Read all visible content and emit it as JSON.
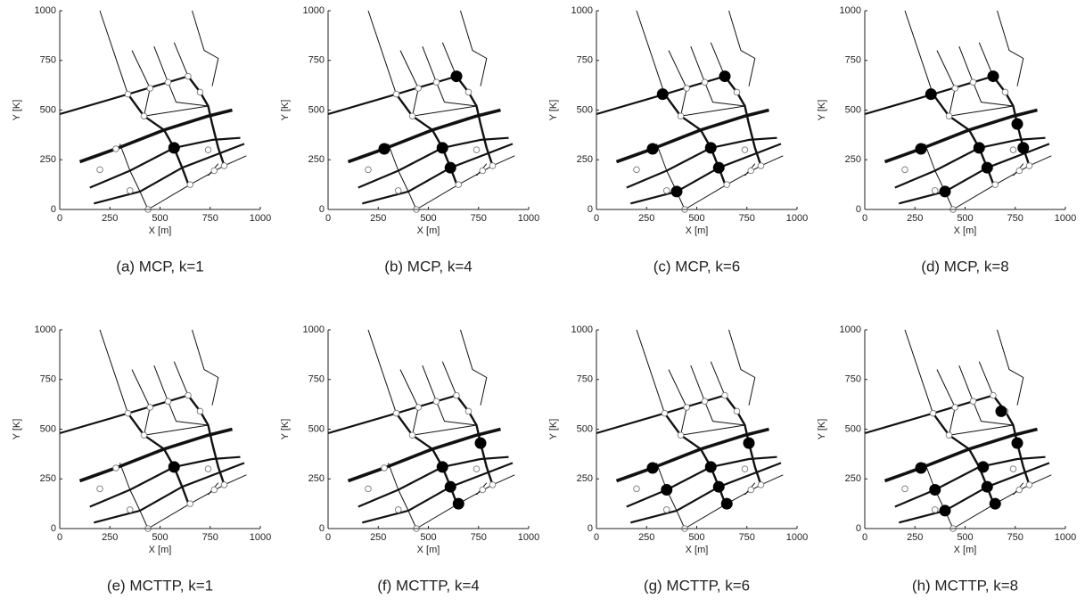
{
  "network": {
    "roads": [
      {
        "x": [
          0,
          340,
          640
        ],
        "y": [
          480,
          580,
          670
        ]
      },
      {
        "x": [
          200,
          340
        ],
        "y": [
          1000,
          580
        ]
      },
      {
        "x": [
          360,
          450
        ],
        "y": [
          800,
          610
        ]
      },
      {
        "x": [
          470,
          540
        ],
        "y": [
          820,
          640
        ]
      },
      {
        "x": [
          570,
          640
        ],
        "y": [
          840,
          670
        ]
      },
      {
        "x": [
          660,
          720,
          790,
          760
        ],
        "y": [
          1000,
          800,
          760,
          620
        ]
      },
      {
        "x": [
          340,
          420,
          520,
          570,
          610,
          640
        ],
        "y": [
          580,
          470,
          400,
          310,
          210,
          130
        ]
      },
      {
        "x": [
          640,
          700,
          740,
          760,
          790,
          820
        ],
        "y": [
          670,
          590,
          520,
          430,
          310,
          220
        ]
      },
      {
        "x": [
          300,
          350,
          400,
          440
        ],
        "y": [
          330,
          195,
          90,
          0
        ]
      },
      {
        "x": [
          100,
          280,
          520,
          740,
          860
        ],
        "y": [
          240,
          305,
          400,
          470,
          500
        ]
      },
      {
        "x": [
          150,
          350,
          570,
          760,
          900
        ],
        "y": [
          110,
          195,
          310,
          350,
          360
        ]
      },
      {
        "x": [
          170,
          400,
          610,
          790,
          920
        ],
        "y": [
          30,
          90,
          210,
          280,
          330
        ]
      },
      {
        "x": [
          440,
          650,
          820,
          930
        ],
        "y": [
          0,
          125,
          220,
          270
        ]
      },
      {
        "x": [
          450,
          420
        ],
        "y": [
          610,
          470
        ]
      },
      {
        "x": [
          420,
          740
        ],
        "y": [
          470,
          520
        ]
      },
      {
        "x": [
          540,
          580,
          740
        ],
        "y": [
          640,
          540,
          520
        ]
      },
      {
        "x": [
          740,
          790
        ],
        "y": [
          170,
          230
        ]
      }
    ],
    "nodes": {
      "x": [
        340,
        450,
        540,
        640,
        700,
        420,
        280,
        200,
        350,
        440,
        650,
        770,
        820,
        740
      ],
      "y": [
        580,
        610,
        640,
        670,
        590,
        470,
        305,
        200,
        95,
        0,
        125,
        195,
        220,
        300
      ]
    }
  },
  "chart_data": [
    {
      "type": "scatter",
      "caption": "(a) MCP, k=1",
      "xlabel": "X [m]",
      "ylabel": "Y [K]",
      "xlim": [
        0,
        1000
      ],
      "ylim": [
        0,
        1000
      ],
      "xticks": [
        0,
        250,
        500,
        750,
        1000
      ],
      "yticks": [
        0,
        250,
        500,
        750,
        1000
      ],
      "color": "#000000",
      "x": [
        570
      ],
      "y": [
        310
      ]
    },
    {
      "type": "scatter",
      "caption": "(b) MCP, k=4",
      "xlabel": "X [m]",
      "ylabel": "Y [K]",
      "xlim": [
        0,
        1000
      ],
      "ylim": [
        0,
        1000
      ],
      "xticks": [
        0,
        250,
        500,
        750,
        1000
      ],
      "yticks": [
        0,
        250,
        500,
        750,
        1000
      ],
      "color": "#000000",
      "x": [
        640,
        280,
        570,
        610
      ],
      "y": [
        670,
        305,
        310,
        210
      ]
    },
    {
      "type": "scatter",
      "caption": "(c) MCP, k=6",
      "xlabel": "X [m]",
      "ylabel": "Y [K]",
      "xlim": [
        0,
        1000
      ],
      "ylim": [
        0,
        1000
      ],
      "xticks": [
        0,
        250,
        500,
        750,
        1000
      ],
      "yticks": [
        0,
        250,
        500,
        750,
        1000
      ],
      "color": "#000000",
      "x": [
        330,
        640,
        280,
        570,
        610,
        400
      ],
      "y": [
        580,
        670,
        305,
        310,
        210,
        90
      ]
    },
    {
      "type": "scatter",
      "caption": "(d) MCP, k=8",
      "xlabel": "X [m]",
      "ylabel": "Y [K]",
      "xlim": [
        0,
        1000
      ],
      "ylim": [
        0,
        1000
      ],
      "xticks": [
        0,
        250,
        500,
        750,
        1000
      ],
      "yticks": [
        0,
        250,
        500,
        750,
        1000
      ],
      "color": "#000000",
      "x": [
        330,
        640,
        760,
        280,
        570,
        790,
        610,
        400
      ],
      "y": [
        580,
        670,
        430,
        305,
        310,
        310,
        210,
        90
      ]
    },
    {
      "type": "scatter",
      "caption": "(e) MCTTP, k=1",
      "xlabel": "X [m]",
      "ylabel": "Y [K]",
      "xlim": [
        0,
        1000
      ],
      "ylim": [
        0,
        1000
      ],
      "xticks": [
        0,
        250,
        500,
        750,
        1000
      ],
      "yticks": [
        0,
        250,
        500,
        750,
        1000
      ],
      "color": "#000000",
      "x": [
        570
      ],
      "y": [
        310
      ]
    },
    {
      "type": "scatter",
      "caption": "(f) MCTTP, k=4",
      "xlabel": "X [m]",
      "ylabel": "Y [K]",
      "xlim": [
        0,
        1000
      ],
      "ylim": [
        0,
        1000
      ],
      "xticks": [
        0,
        250,
        500,
        750,
        1000
      ],
      "yticks": [
        0,
        250,
        500,
        750,
        1000
      ],
      "color": "#000000",
      "x": [
        760,
        570,
        610,
        650
      ],
      "y": [
        430,
        310,
        210,
        125
      ]
    },
    {
      "type": "scatter",
      "caption": "(g) MCTTP, k=6",
      "xlabel": "X [m]",
      "ylabel": "Y [K]",
      "xlim": [
        0,
        1000
      ],
      "ylim": [
        0,
        1000
      ],
      "xticks": [
        0,
        250,
        500,
        750,
        1000
      ],
      "yticks": [
        0,
        250,
        500,
        750,
        1000
      ],
      "color": "#000000",
      "x": [
        760,
        280,
        570,
        350,
        610,
        650
      ],
      "y": [
        430,
        305,
        310,
        195,
        210,
        125
      ]
    },
    {
      "type": "scatter",
      "caption": "(h) MCTTP, k=8",
      "xlabel": "X [m]",
      "ylabel": "Y [K]",
      "xlim": [
        0,
        1000
      ],
      "ylim": [
        0,
        1000
      ],
      "xticks": [
        0,
        250,
        500,
        750,
        1000
      ],
      "yticks": [
        0,
        250,
        500,
        750,
        1000
      ],
      "color": "#000000",
      "x": [
        680,
        760,
        280,
        590,
        350,
        610,
        400,
        650
      ],
      "y": [
        590,
        430,
        305,
        310,
        195,
        210,
        90,
        125
      ]
    }
  ]
}
